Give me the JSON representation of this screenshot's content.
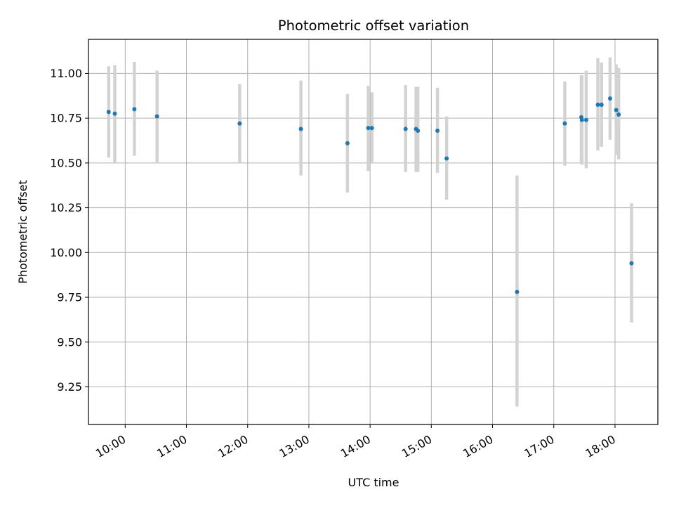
{
  "chart_data": {
    "type": "scatter",
    "title": "Photometric offset variation",
    "xlabel": "UTC time",
    "ylabel": "Photometric offset",
    "x_unit": "hours UTC",
    "xlim": [
      9.4,
      18.7
    ],
    "ylim": [
      9.04,
      11.19
    ],
    "x_ticks": [
      {
        "value": 10,
        "label": "10:00"
      },
      {
        "value": 11,
        "label": "11:00"
      },
      {
        "value": 12,
        "label": "12:00"
      },
      {
        "value": 13,
        "label": "13:00"
      },
      {
        "value": 14,
        "label": "14:00"
      },
      {
        "value": 15,
        "label": "15:00"
      },
      {
        "value": 16,
        "label": "16:00"
      },
      {
        "value": 17,
        "label": "17:00"
      },
      {
        "value": 18,
        "label": "18:00"
      }
    ],
    "y_ticks": [
      {
        "value": 9.25,
        "label": "9.25"
      },
      {
        "value": 9.5,
        "label": "9.50"
      },
      {
        "value": 9.75,
        "label": "9.75"
      },
      {
        "value": 10.0,
        "label": "10.00"
      },
      {
        "value": 10.25,
        "label": "10.25"
      },
      {
        "value": 10.5,
        "label": "10.50"
      },
      {
        "value": 10.75,
        "label": "10.75"
      },
      {
        "value": 11.0,
        "label": "11.00"
      }
    ],
    "grid": true,
    "colors": {
      "points": "#1f77b4",
      "errorbars": "#d3d3d3",
      "grid": "#b0b0b0"
    },
    "points": [
      {
        "x": 9.73,
        "y": 10.785,
        "ylo": 10.53,
        "yhi": 11.04
      },
      {
        "x": 9.83,
        "y": 10.775,
        "ylo": 10.5,
        "yhi": 11.045
      },
      {
        "x": 10.15,
        "y": 10.8,
        "ylo": 10.54,
        "yhi": 11.065
      },
      {
        "x": 10.52,
        "y": 10.76,
        "ylo": 10.5,
        "yhi": 11.015
      },
      {
        "x": 11.87,
        "y": 10.72,
        "ylo": 10.5,
        "yhi": 10.94
      },
      {
        "x": 12.87,
        "y": 10.69,
        "ylo": 10.43,
        "yhi": 10.96
      },
      {
        "x": 13.63,
        "y": 10.61,
        "ylo": 10.335,
        "yhi": 10.885
      },
      {
        "x": 13.97,
        "y": 10.695,
        "ylo": 10.455,
        "yhi": 10.93
      },
      {
        "x": 14.03,
        "y": 10.695,
        "ylo": 10.5,
        "yhi": 10.895
      },
      {
        "x": 14.58,
        "y": 10.69,
        "ylo": 10.45,
        "yhi": 10.935
      },
      {
        "x": 14.75,
        "y": 10.69,
        "ylo": 10.45,
        "yhi": 10.925
      },
      {
        "x": 14.78,
        "y": 10.68,
        "ylo": 10.45,
        "yhi": 10.925
      },
      {
        "x": 15.1,
        "y": 10.68,
        "ylo": 10.445,
        "yhi": 10.92
      },
      {
        "x": 15.25,
        "y": 10.525,
        "ylo": 10.295,
        "yhi": 10.76
      },
      {
        "x": 16.4,
        "y": 9.78,
        "ylo": 9.14,
        "yhi": 10.43
      },
      {
        "x": 17.18,
        "y": 10.72,
        "ylo": 10.485,
        "yhi": 10.955
      },
      {
        "x": 17.45,
        "y": 10.755,
        "ylo": 10.5,
        "yhi": 10.99
      },
      {
        "x": 17.46,
        "y": 10.74,
        "ylo": 10.49,
        "yhi": 10.99
      },
      {
        "x": 17.53,
        "y": 10.74,
        "ylo": 10.47,
        "yhi": 11.015
      },
      {
        "x": 17.72,
        "y": 10.825,
        "ylo": 10.57,
        "yhi": 11.085
      },
      {
        "x": 17.78,
        "y": 10.825,
        "ylo": 10.59,
        "yhi": 11.06
      },
      {
        "x": 17.92,
        "y": 10.86,
        "ylo": 10.63,
        "yhi": 11.09
      },
      {
        "x": 18.02,
        "y": 10.795,
        "ylo": 10.545,
        "yhi": 11.05
      },
      {
        "x": 18.06,
        "y": 10.77,
        "ylo": 10.52,
        "yhi": 11.03
      },
      {
        "x": 18.27,
        "y": 9.94,
        "ylo": 9.61,
        "yhi": 10.275
      }
    ]
  }
}
